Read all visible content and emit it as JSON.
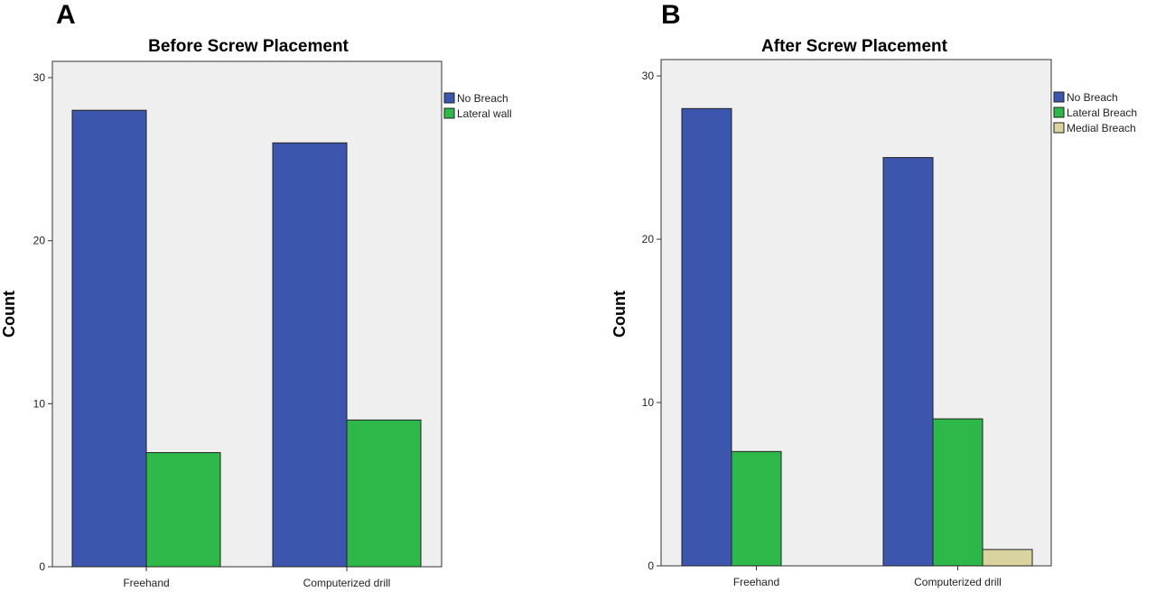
{
  "chart_data": [
    {
      "type": "bar",
      "panel": "A",
      "title": "Before Screw Placement",
      "xlabel": "",
      "ylabel": "Count",
      "ylim": [
        0,
        31
      ],
      "yticks": [
        0,
        10,
        20,
        30
      ],
      "categories": [
        "Freehand",
        "Computerized drill"
      ],
      "series": [
        {
          "name": "No Breach",
          "color": "#3c55ad",
          "values": [
            28,
            26
          ]
        },
        {
          "name": "Lateral wall",
          "color": "#2eb84a",
          "values": [
            7,
            9
          ]
        }
      ],
      "grid": false,
      "legend": "top-right"
    },
    {
      "type": "bar",
      "panel": "B",
      "title": "After Screw Placement",
      "xlabel": "",
      "ylabel": "Count",
      "ylim": [
        0,
        31
      ],
      "yticks": [
        0,
        10,
        20,
        30
      ],
      "categories": [
        "Freehand",
        "Computerized drill"
      ],
      "series": [
        {
          "name": "No Breach",
          "color": "#3c55ad",
          "values": [
            28,
            25
          ]
        },
        {
          "name": "Lateral Breach",
          "color": "#2eb84a",
          "values": [
            7,
            9
          ]
        },
        {
          "name": "Medial Breach",
          "color": "#d9d39f",
          "values": [
            0,
            1
          ]
        }
      ],
      "grid": false,
      "legend": "top-right"
    }
  ]
}
